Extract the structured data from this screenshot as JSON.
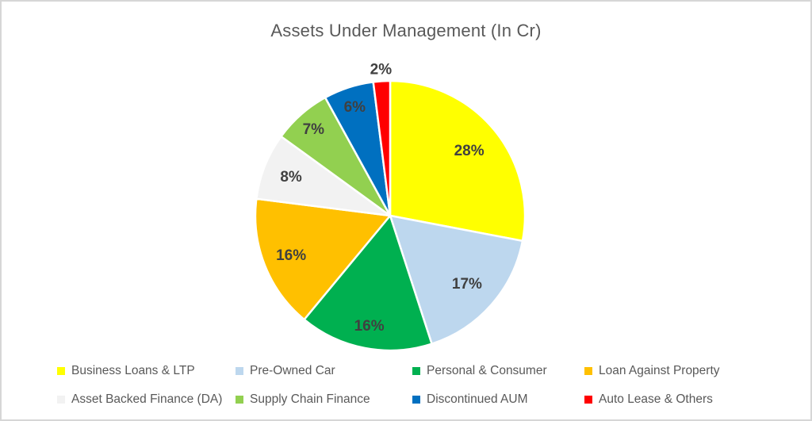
{
  "title": "Assets Under Management (In Cr)",
  "chart_data": {
    "type": "pie",
    "title": "Assets Under Management (In Cr)",
    "unit": "percent",
    "start_angle_deg": 0,
    "direction": "clockwise",
    "legend_position": "bottom",
    "slices": [
      {
        "label": "Business Loans & LTP",
        "value": 28,
        "data_label": "28%",
        "color": "#FFFF00"
      },
      {
        "label": "Pre-Owned Car",
        "value": 17,
        "data_label": "17%",
        "color": "#BDD7EE"
      },
      {
        "label": "Personal & Consumer",
        "value": 16,
        "data_label": "16%",
        "color": "#00B050"
      },
      {
        "label": "Loan Against Property",
        "value": 16,
        "data_label": "16%",
        "color": "#FFC000"
      },
      {
        "label": "Asset Backed Finance (DA)",
        "value": 8,
        "data_label": "8%",
        "color": "#F2F2F2"
      },
      {
        "label": "Supply Chain Finance",
        "value": 7,
        "data_label": "7%",
        "color": "#92D050"
      },
      {
        "label": "Discontinued AUM",
        "value": 6,
        "data_label": "6%",
        "color": "#0070C0"
      },
      {
        "label": "Auto Lease & Others",
        "value": 2,
        "data_label": "2%",
        "color": "#FF0000"
      }
    ]
  },
  "colors": {
    "slice_label_text": "#404040",
    "title_text": "#595959",
    "legend_text": "#595959",
    "slice_stroke": "#FFFFFF",
    "background": "#FFFFFF",
    "frame_border": "#D6D6D6"
  }
}
